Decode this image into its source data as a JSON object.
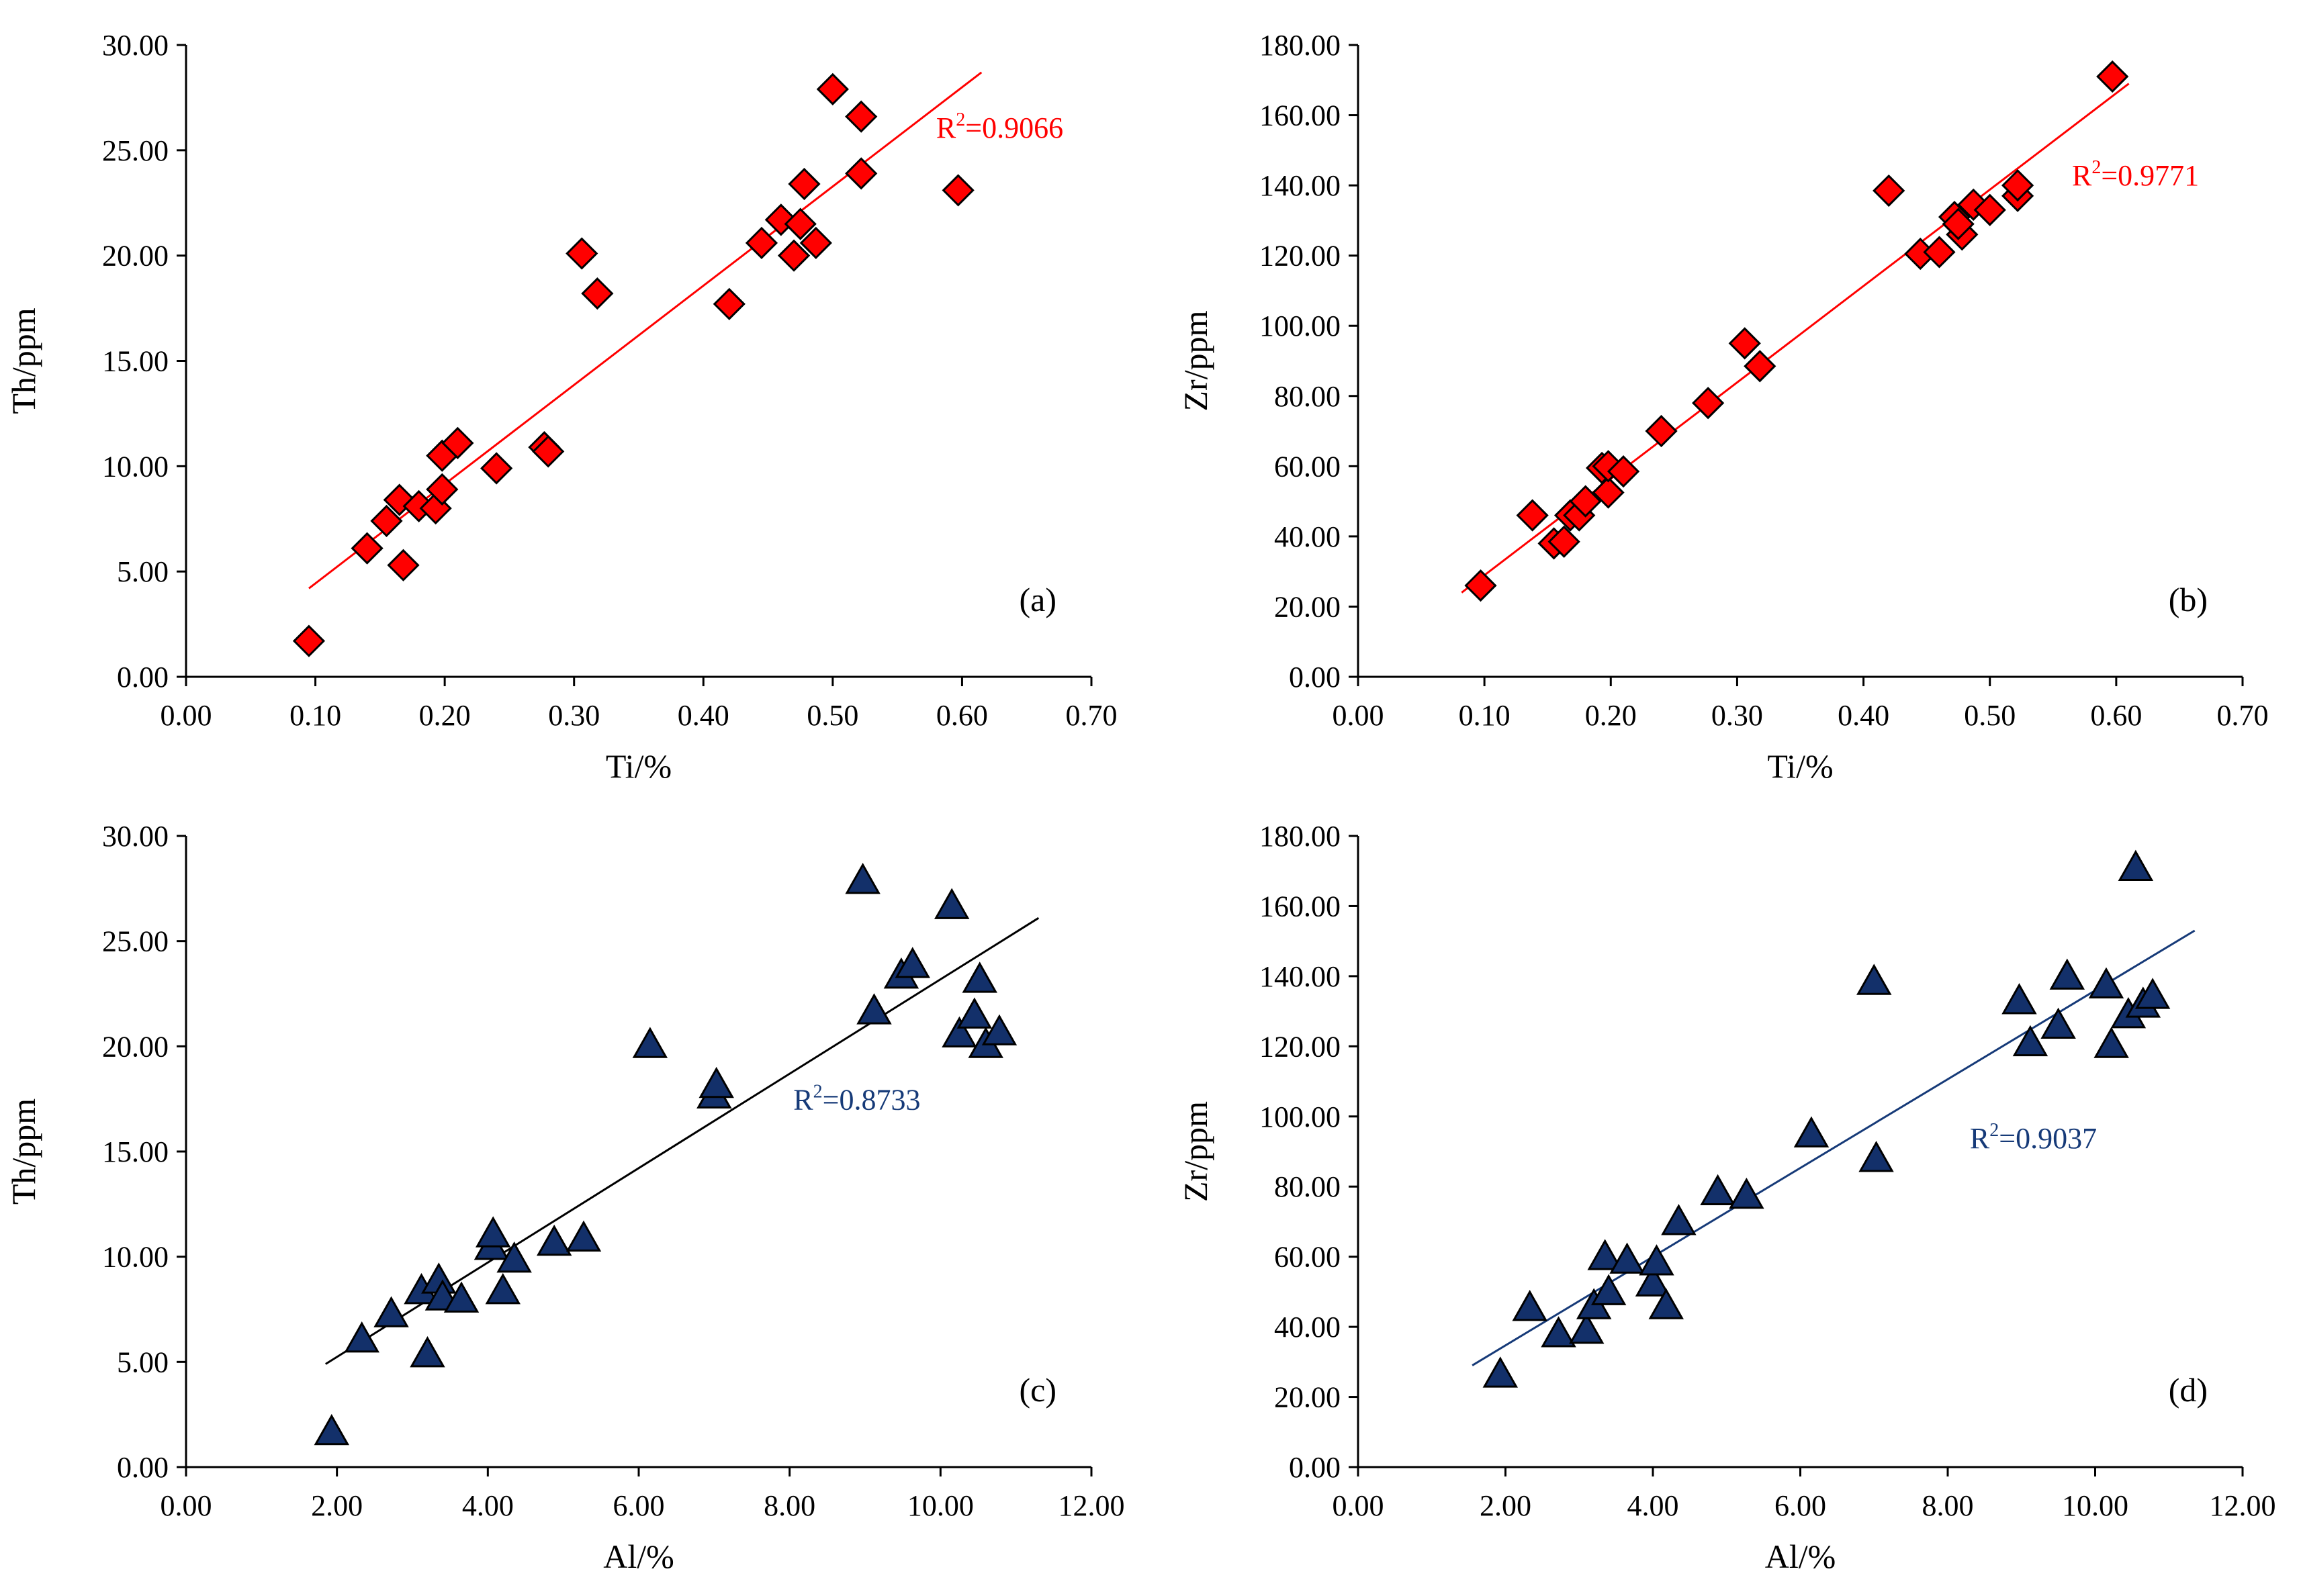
{
  "figure": {
    "colors": {
      "red": "#ff0000",
      "blue": "#163a78",
      "black": "#000000",
      "marker_red": "#ff0000",
      "marker_blue": "#13306a"
    }
  },
  "chart_data": [
    {
      "type": "scatter",
      "panel": "(a)",
      "xlabel": "Ti/%",
      "ylabel": "Th/ppm",
      "xlim": [
        0,
        0.7
      ],
      "ylim": [
        0,
        30
      ],
      "x_ticks": [
        "0.00",
        "0.10",
        "0.20",
        "0.30",
        "0.40",
        "0.50",
        "0.60",
        "0.70"
      ],
      "y_ticks": [
        "0.00",
        "5.00",
        "10.00",
        "15.00",
        "20.00",
        "25.00",
        "30.00"
      ],
      "marker": "diamond",
      "marker_color": "#ff0000",
      "trend": {
        "x": [
          0.095,
          0.615
        ],
        "y": [
          4.2,
          28.7
        ],
        "color": "#ff0000"
      },
      "r2": {
        "prefix": "R",
        "sup": "2",
        "value": "=0.9066",
        "color": "#ff0000",
        "x": 0.58,
        "y": 25.6,
        "anchor": "start"
      },
      "points": [
        {
          "x": 0.095,
          "y": 1.7
        },
        {
          "x": 0.14,
          "y": 6.1
        },
        {
          "x": 0.155,
          "y": 7.4
        },
        {
          "x": 0.165,
          "y": 8.4
        },
        {
          "x": 0.168,
          "y": 5.3
        },
        {
          "x": 0.18,
          "y": 8.1
        },
        {
          "x": 0.193,
          "y": 8.0
        },
        {
          "x": 0.198,
          "y": 8.9
        },
        {
          "x": 0.198,
          "y": 10.5
        },
        {
          "x": 0.21,
          "y": 11.1
        },
        {
          "x": 0.24,
          "y": 9.9
        },
        {
          "x": 0.277,
          "y": 10.9
        },
        {
          "x": 0.28,
          "y": 10.7
        },
        {
          "x": 0.306,
          "y": 20.1
        },
        {
          "x": 0.318,
          "y": 18.2
        },
        {
          "x": 0.42,
          "y": 17.7
        },
        {
          "x": 0.445,
          "y": 20.6
        },
        {
          "x": 0.46,
          "y": 21.7
        },
        {
          "x": 0.47,
          "y": 20.0
        },
        {
          "x": 0.475,
          "y": 21.5
        },
        {
          "x": 0.478,
          "y": 23.4
        },
        {
          "x": 0.487,
          "y": 20.6
        },
        {
          "x": 0.5,
          "y": 27.9
        },
        {
          "x": 0.522,
          "y": 26.6
        },
        {
          "x": 0.522,
          "y": 23.9
        },
        {
          "x": 0.597,
          "y": 23.1
        }
      ]
    },
    {
      "type": "scatter",
      "panel": "(b)",
      "xlabel": "Ti/%",
      "ylabel": "Zr/ppm",
      "xlim": [
        0,
        0.7
      ],
      "ylim": [
        0,
        180
      ],
      "x_ticks": [
        "0.00",
        "0.10",
        "0.20",
        "0.30",
        "0.40",
        "0.50",
        "0.60",
        "0.70"
      ],
      "y_ticks": [
        "0.00",
        "20.00",
        "40.00",
        "60.00",
        "80.00",
        "100.00",
        "120.00",
        "140.00",
        "160.00",
        "180.00"
      ],
      "marker": "diamond",
      "marker_color": "#ff0000",
      "trend": {
        "x": [
          0.082,
          0.61
        ],
        "y": [
          24.0,
          169.0
        ],
        "color": "#ff0000"
      },
      "r2": {
        "prefix": "R",
        "sup": "2",
        "value": "=0.9771",
        "color": "#ff0000",
        "x": 0.565,
        "y": 140,
        "anchor": "start"
      },
      "points": [
        {
          "x": 0.097,
          "y": 26.0
        },
        {
          "x": 0.138,
          "y": 46.0
        },
        {
          "x": 0.155,
          "y": 38.0
        },
        {
          "x": 0.163,
          "y": 38.5
        },
        {
          "x": 0.168,
          "y": 46.0
        },
        {
          "x": 0.175,
          "y": 46.0
        },
        {
          "x": 0.18,
          "y": 50.0
        },
        {
          "x": 0.193,
          "y": 59.5
        },
        {
          "x": 0.198,
          "y": 52.5
        },
        {
          "x": 0.198,
          "y": 60.0
        },
        {
          "x": 0.21,
          "y": 58.5
        },
        {
          "x": 0.24,
          "y": 70.0
        },
        {
          "x": 0.277,
          "y": 78.0
        },
        {
          "x": 0.306,
          "y": 95.0
        },
        {
          "x": 0.318,
          "y": 88.5
        },
        {
          "x": 0.42,
          "y": 138.5
        },
        {
          "x": 0.445,
          "y": 120.5
        },
        {
          "x": 0.46,
          "y": 121.0
        },
        {
          "x": 0.472,
          "y": 131.0
        },
        {
          "x": 0.478,
          "y": 126.0
        },
        {
          "x": 0.475,
          "y": 129.0
        },
        {
          "x": 0.487,
          "y": 134.5
        },
        {
          "x": 0.5,
          "y": 133.0
        },
        {
          "x": 0.522,
          "y": 137.0
        },
        {
          "x": 0.522,
          "y": 140.0
        },
        {
          "x": 0.597,
          "y": 171.0
        }
      ]
    },
    {
      "type": "scatter",
      "panel": "(c)",
      "xlabel": "Al/%",
      "ylabel": "Th/ppm",
      "xlim": [
        0,
        12
      ],
      "ylim": [
        0,
        30
      ],
      "x_ticks": [
        "0.00",
        "2.00",
        "4.00",
        "6.00",
        "8.00",
        "10.00",
        "12.00"
      ],
      "y_ticks": [
        "0.00",
        "5.00",
        "10.00",
        "15.00",
        "20.00",
        "25.00",
        "30.00"
      ],
      "marker": "triangle",
      "marker_color": "#13306a",
      "trend": {
        "x": [
          1.85,
          11.3
        ],
        "y": [
          4.9,
          26.1
        ],
        "color": "#000000"
      },
      "r2": {
        "prefix": "R",
        "sup": "2",
        "value": "=0.8733",
        "color": "#163a78",
        "x": 8.05,
        "y": 17.0,
        "anchor": "start"
      },
      "points": [
        {
          "x": 1.93,
          "y": 1.6
        },
        {
          "x": 2.33,
          "y": 6.0
        },
        {
          "x": 2.72,
          "y": 7.2
        },
        {
          "x": 3.12,
          "y": 8.3
        },
        {
          "x": 3.2,
          "y": 5.3
        },
        {
          "x": 3.35,
          "y": 8.8
        },
        {
          "x": 3.4,
          "y": 8.0
        },
        {
          "x": 3.65,
          "y": 7.9
        },
        {
          "x": 4.05,
          "y": 10.4
        },
        {
          "x": 4.07,
          "y": 11.0
        },
        {
          "x": 4.2,
          "y": 8.3
        },
        {
          "x": 4.35,
          "y": 9.8
        },
        {
          "x": 4.88,
          "y": 10.6
        },
        {
          "x": 5.27,
          "y": 10.8
        },
        {
          "x": 6.15,
          "y": 20.0
        },
        {
          "x": 7.0,
          "y": 17.6
        },
        {
          "x": 7.03,
          "y": 18.1
        },
        {
          "x": 8.97,
          "y": 27.8
        },
        {
          "x": 9.12,
          "y": 21.6
        },
        {
          "x": 9.48,
          "y": 23.3
        },
        {
          "x": 9.63,
          "y": 23.8
        },
        {
          "x": 10.15,
          "y": 26.6
        },
        {
          "x": 10.25,
          "y": 20.5
        },
        {
          "x": 10.45,
          "y": 21.4
        },
        {
          "x": 10.52,
          "y": 23.1
        },
        {
          "x": 10.6,
          "y": 20.0
        },
        {
          "x": 10.78,
          "y": 20.6
        }
      ]
    },
    {
      "type": "scatter",
      "panel": "(d)",
      "xlabel": "Al/%",
      "ylabel": "Zr/ppm",
      "xlim": [
        0,
        12
      ],
      "ylim": [
        0,
        180
      ],
      "x_ticks": [
        "0.00",
        "2.00",
        "4.00",
        "6.00",
        "8.00",
        "10.00",
        "12.00"
      ],
      "y_ticks": [
        "0.00",
        "20.00",
        "40.00",
        "60.00",
        "80.00",
        "100.00",
        "120.00",
        "140.00",
        "160.00",
        "180.00"
      ],
      "marker": "triangle",
      "marker_color": "#13306a",
      "trend": {
        "x": [
          1.55,
          11.35
        ],
        "y": [
          29.0,
          153.0
        ],
        "color": "#163a78"
      },
      "r2": {
        "prefix": "R",
        "sup": "2",
        "value": "=0.9037",
        "color": "#163a78",
        "x": 8.3,
        "y": 91,
        "anchor": "start"
      },
      "points": [
        {
          "x": 1.93,
          "y": 26.0
        },
        {
          "x": 2.33,
          "y": 45.0
        },
        {
          "x": 2.72,
          "y": 37.5
        },
        {
          "x": 3.1,
          "y": 38.5
        },
        {
          "x": 3.2,
          "y": 45.5
        },
        {
          "x": 3.35,
          "y": 59.5
        },
        {
          "x": 3.4,
          "y": 49.5
        },
        {
          "x": 3.65,
          "y": 58.5
        },
        {
          "x": 4.0,
          "y": 52.0
        },
        {
          "x": 4.05,
          "y": 58.0
        },
        {
          "x": 4.18,
          "y": 45.5
        },
        {
          "x": 4.35,
          "y": 69.5
        },
        {
          "x": 4.88,
          "y": 78.0
        },
        {
          "x": 5.27,
          "y": 77.0
        },
        {
          "x": 6.15,
          "y": 94.5
        },
        {
          "x": 7.0,
          "y": 138.0
        },
        {
          "x": 7.03,
          "y": 87.5
        },
        {
          "x": 8.97,
          "y": 132.5
        },
        {
          "x": 9.12,
          "y": 120.5
        },
        {
          "x": 9.5,
          "y": 125.5
        },
        {
          "x": 9.62,
          "y": 139.5
        },
        {
          "x": 10.15,
          "y": 137.0
        },
        {
          "x": 10.22,
          "y": 120.0
        },
        {
          "x": 10.45,
          "y": 128.5
        },
        {
          "x": 10.55,
          "y": 170.5
        },
        {
          "x": 10.65,
          "y": 131.5
        },
        {
          "x": 10.78,
          "y": 134.0
        }
      ]
    }
  ]
}
